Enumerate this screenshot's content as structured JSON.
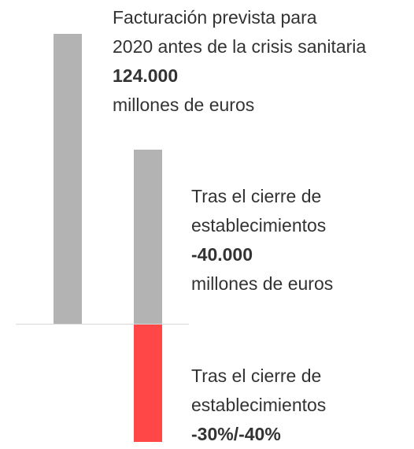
{
  "annotations": [
    {
      "lines": [
        "Facturación prevista para",
        "2020 antes de la crisis sanitaria"
      ],
      "figure": "124.000",
      "unit": "millones de euros"
    },
    {
      "lines": [
        "Tras el cierre de",
        "establecimientos"
      ],
      "figure": "-40.000",
      "unit": "millones de euros"
    },
    {
      "lines": [
        "Tras el cierre de",
        "establecimientos"
      ],
      "figure": "-30%/-40%"
    }
  ]
}
